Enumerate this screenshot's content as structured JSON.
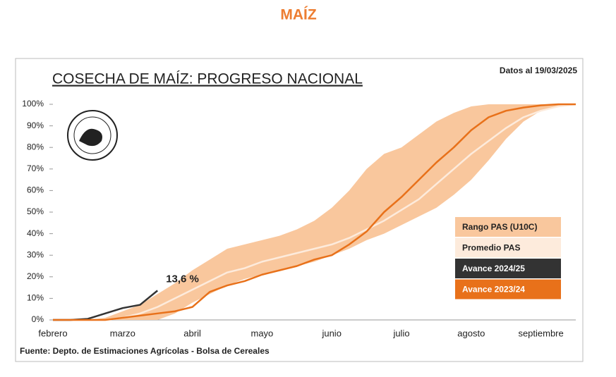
{
  "header": {
    "title": "MAÍZ"
  },
  "chart_data": {
    "type": "line",
    "title": "COSECHA DE MAÍZ: PROGRESO NACIONAL",
    "subtitle": "Datos al 19/03/2025",
    "source": "Fuente: Depto. de Estimaciones Agrícolas - Bolsa de Cereales",
    "categories": [
      "febrero",
      null,
      null,
      null,
      "marzo",
      null,
      null,
      null,
      "abril",
      null,
      null,
      null,
      "mayo",
      null,
      null,
      null,
      "junio",
      null,
      null,
      null,
      "julio",
      null,
      null,
      null,
      "agosto",
      null,
      null,
      null,
      "septiembre",
      null,
      null
    ],
    "ylim": [
      0,
      100
    ],
    "yticks": [
      {
        "value": 0,
        "label": "0%"
      },
      {
        "value": 10,
        "label": "10%"
      },
      {
        "value": 20,
        "label": "20%"
      },
      {
        "value": 30,
        "label": "30%"
      },
      {
        "value": 40,
        "label": "40%"
      },
      {
        "value": 50,
        "label": "50%"
      },
      {
        "value": 60,
        "label": "60%"
      },
      {
        "value": 70,
        "label": "70%"
      },
      {
        "value": 80,
        "label": "80%"
      },
      {
        "value": 90,
        "label": "90%"
      },
      {
        "value": 100,
        "label": "100%"
      }
    ],
    "range": {
      "name": "Rango PAS (U10C)",
      "color": "#f9c79d",
      "low": [
        0,
        0,
        0,
        0,
        0,
        0,
        0,
        3,
        8,
        12,
        16,
        19,
        21,
        23,
        25,
        27,
        30,
        33,
        37,
        40,
        44,
        48,
        52,
        58,
        65,
        74,
        84,
        92,
        97,
        99,
        100
      ],
      "high": [
        0,
        0,
        0,
        1,
        4,
        7,
        12,
        17,
        23,
        28,
        33,
        35,
        37,
        39,
        42,
        46,
        52,
        60,
        70,
        77,
        80,
        86,
        92,
        96,
        99,
        100,
        100,
        100,
        100,
        100,
        100
      ]
    },
    "series": [
      {
        "name": "Promedio PAS",
        "color": "#fdebdc",
        "values": [
          0,
          0,
          0,
          0,
          1,
          3,
          6,
          10,
          14,
          18,
          22,
          24,
          27,
          29,
          31,
          33,
          35,
          38,
          42,
          46,
          51,
          56,
          63,
          70,
          77,
          83,
          89,
          94,
          97,
          99,
          100
        ]
      },
      {
        "name": "Avance 2024/25",
        "color": "#333333",
        "values": [
          0,
          0,
          0.5,
          3,
          5.5,
          7,
          13.6,
          null,
          null,
          null,
          null,
          null,
          null,
          null,
          null,
          null,
          null,
          null,
          null,
          null,
          null,
          null,
          null,
          null,
          null,
          null,
          null,
          null,
          null,
          null,
          null
        ],
        "value_labels": [
          null,
          null,
          null,
          null,
          null,
          null,
          "13,6 %",
          null,
          null,
          null,
          null,
          null,
          null,
          null,
          null,
          null,
          null,
          null,
          null,
          null,
          null,
          null,
          null,
          null,
          null,
          null,
          null,
          null,
          null,
          null,
          null
        ]
      },
      {
        "name": "Avance 2023/24",
        "color": "#e8711a",
        "values": [
          0,
          0,
          0,
          0,
          1,
          2,
          3,
          4,
          6,
          13,
          16,
          18,
          21,
          23,
          25,
          28,
          30,
          35,
          41,
          50,
          57,
          65,
          73,
          80,
          88,
          94,
          97,
          98.5,
          99.5,
          100,
          100
        ]
      }
    ]
  }
}
